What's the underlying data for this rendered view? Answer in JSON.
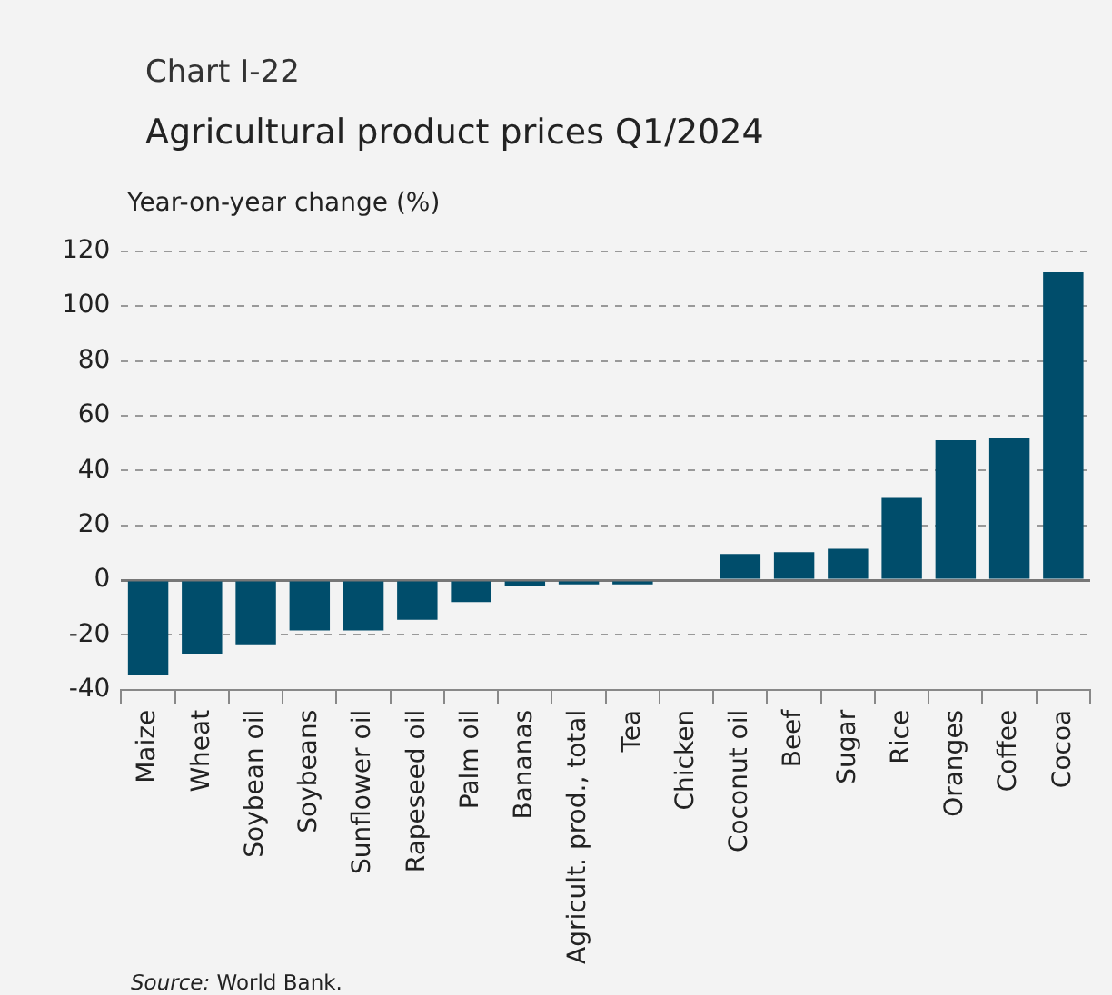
{
  "chart_data": {
    "type": "bar",
    "subtitle": "Chart I-22",
    "title": "Agricultural product prices Q1/2024",
    "ylabel": "Year-on-year change (%)",
    "categories": [
      "Maize",
      "Wheat",
      "Soybean oil",
      "Soybeans",
      "Sunflower oil",
      "Rapeseed oil",
      "Palm oil",
      "Bananas",
      "Agricult. prod., total",
      "Tea",
      "Chicken",
      "Coconut oil",
      "Beef",
      "Sugar",
      "Rice",
      "Oranges",
      "Coffee",
      "Cocoa"
    ],
    "values": [
      -34.5,
      -26.8,
      -23.4,
      -18.4,
      -18.4,
      -14.5,
      -8,
      -2.3,
      -1.6,
      -1.6,
      -0.5,
      9.5,
      10.2,
      11.4,
      30,
      51,
      52,
      112.3
    ],
    "color": "#004d6b",
    "ylim": [
      -40,
      120
    ],
    "yticks": [
      -40,
      -20,
      0,
      20,
      40,
      60,
      80,
      100,
      120
    ],
    "grid": "y",
    "legend": false,
    "annotations": [
      "Source: World Bank."
    ]
  }
}
